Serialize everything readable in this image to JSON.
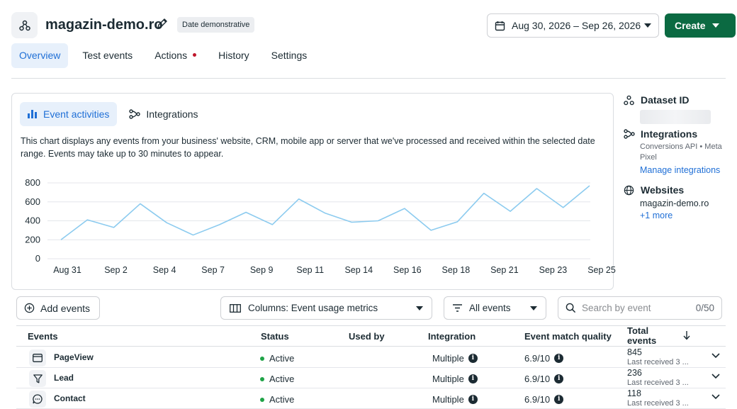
{
  "header": {
    "title": "magazin-demo.ro",
    "badge": "Date demonstrative",
    "date_range": "Aug 30, 2026 – Sep 26, 2026",
    "create_label": "Create"
  },
  "tabs": [
    {
      "label": "Overview",
      "active": true
    },
    {
      "label": "Test events"
    },
    {
      "label": "Actions",
      "notification": true
    },
    {
      "label": "History"
    },
    {
      "label": "Settings"
    }
  ],
  "card": {
    "tabs": [
      {
        "label": "Event activities",
        "icon": "bar-chart-icon",
        "active": true
      },
      {
        "label": "Integrations",
        "icon": "integrations-icon"
      }
    ],
    "description": "This chart displays any events from your business' website, CRM, mobile app or server that we've processed and received within the selected date range. Events may take up to 30 minutes to appear."
  },
  "chart_data": {
    "type": "line",
    "x_ticks": [
      "Aug 31",
      "Sep 2",
      "Sep 4",
      "Sep 7",
      "Sep 9",
      "Sep 11",
      "Sep 14",
      "Sep 16",
      "Sep 18",
      "Sep 21",
      "Sep 23",
      "Sep 25"
    ],
    "y_ticks": [
      0,
      200,
      400,
      600,
      800
    ],
    "ylim": [
      0,
      800
    ],
    "grid": true,
    "series": [
      {
        "color": "#8ccbef",
        "values": [
          200,
          410,
          330,
          580,
          380,
          250,
          360,
          490,
          360,
          630,
          480,
          385,
          400,
          530,
          300,
          390,
          690,
          500,
          740,
          540,
          770
        ]
      }
    ]
  },
  "side": {
    "dataset_label": "Dataset ID",
    "integrations_label": "Integrations",
    "integrations_sub1": "Conversions API • Meta",
    "integrations_sub2": "Pixel",
    "manage_link": "Manage integrations",
    "websites_label": "Websites",
    "website": "magazin-demo.ro",
    "more_link": "+1 more"
  },
  "toolbar": {
    "add_events": "Add events",
    "columns_select": "Columns: Event usage metrics",
    "filter_select": "All events",
    "search_placeholder": "Search by event",
    "search_count": "0/50"
  },
  "table": {
    "headers": {
      "events": "Events",
      "status": "Status",
      "used_by": "Used by",
      "integration": "Integration",
      "emq": "Event match quality",
      "total1": "Total",
      "total2": "events"
    },
    "rows": [
      {
        "name": "PageView",
        "status": "Active",
        "integration": "Multiple",
        "emq": "6.9/10",
        "total": "845",
        "last": "Last received 3 ..."
      },
      {
        "name": "Lead",
        "status": "Active",
        "integration": "Multiple",
        "emq": "6.9/10",
        "total": "236",
        "last": "Last received 3 ..."
      },
      {
        "name": "Contact",
        "status": "Active",
        "integration": "Multiple",
        "emq": "6.9/10",
        "total": "118",
        "last": "Last received 3 ..."
      }
    ]
  }
}
